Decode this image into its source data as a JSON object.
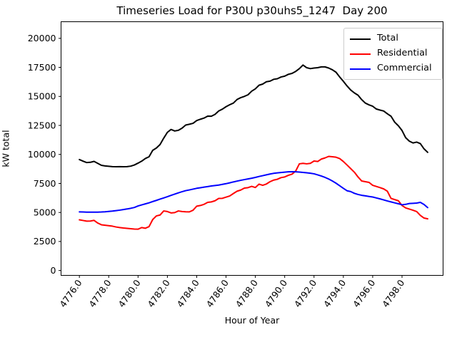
{
  "figure": {
    "title": "Timeseries Load for P30U p30uhs5_1247  Day 200",
    "xlabel": "Hour of Year",
    "ylabel": "kW total"
  },
  "legend": {
    "items": [
      {
        "label": "Total",
        "color": "#000000"
      },
      {
        "label": "Residential",
        "color": "#ff0000"
      },
      {
        "label": "Commercial",
        "color": "#0000ff"
      }
    ]
  },
  "chart_data": {
    "type": "line",
    "title": "Timeseries Load for P30U p30uhs5_1247  Day 200",
    "xlabel": "Hour of Year",
    "ylabel": "kW total",
    "grid": false,
    "legend_position": "upper right",
    "xlim": [
      4774.75,
      4800.8
    ],
    "ylim": [
      -420,
      21430
    ],
    "xticks": [
      4776,
      4778,
      4780,
      4782,
      4784,
      4786,
      4788,
      4790,
      4792,
      4794,
      4796,
      4798
    ],
    "xtick_labels": [
      "4776.0",
      "4778.0",
      "4780.0",
      "4782.0",
      "4784.0",
      "4786.0",
      "4788.0",
      "4790.0",
      "4792.0",
      "4794.0",
      "4796.0",
      "4798.0"
    ],
    "yticks": [
      0,
      2500,
      5000,
      7500,
      10000,
      12500,
      15000,
      17500,
      20000
    ],
    "ytick_labels": [
      "0",
      "2500",
      "5000",
      "7500",
      "10000",
      "12500",
      "15000",
      "17500",
      "20000"
    ],
    "x": [
      4776.0,
      4776.25,
      4776.5,
      4776.75,
      4777.0,
      4777.25,
      4777.5,
      4777.75,
      4778.0,
      4778.25,
      4778.5,
      4778.75,
      4779.0,
      4779.25,
      4779.5,
      4779.75,
      4780.0,
      4780.25,
      4780.5,
      4780.75,
      4781.0,
      4781.25,
      4781.5,
      4781.75,
      4782.0,
      4782.25,
      4782.5,
      4782.75,
      4783.0,
      4783.25,
      4783.5,
      4783.75,
      4784.0,
      4784.25,
      4784.5,
      4784.75,
      4785.0,
      4785.25,
      4785.5,
      4785.75,
      4786.0,
      4786.25,
      4786.5,
      4786.75,
      4787.0,
      4787.25,
      4787.5,
      4787.75,
      4788.0,
      4788.25,
      4788.5,
      4788.75,
      4789.0,
      4789.25,
      4789.5,
      4789.75,
      4790.0,
      4790.25,
      4790.5,
      4790.75,
      4791.0,
      4791.25,
      4791.5,
      4791.75,
      4792.0,
      4792.25,
      4792.5,
      4792.75,
      4793.0,
      4793.25,
      4793.5,
      4793.75,
      4794.0,
      4794.25,
      4794.5,
      4794.75,
      4795.0,
      4795.25,
      4795.5,
      4795.75,
      4796.0,
      4796.25,
      4796.5,
      4796.75,
      4797.0,
      4797.25,
      4797.5,
      4797.75,
      4798.0,
      4798.25,
      4798.5,
      4798.75,
      4799.0,
      4799.25,
      4799.5,
      4799.75
    ],
    "series": [
      {
        "name": "Total",
        "color": "#000000",
        "values": [
          9560,
          9420,
          9300,
          9320,
          9400,
          9230,
          9060,
          9010,
          8980,
          8950,
          8940,
          8950,
          8940,
          8950,
          8990,
          9090,
          9250,
          9420,
          9650,
          9800,
          10350,
          10550,
          10850,
          11400,
          11900,
          12150,
          12020,
          12080,
          12260,
          12530,
          12600,
          12680,
          12920,
          13030,
          13130,
          13300,
          13290,
          13450,
          13740,
          13900,
          14110,
          14280,
          14420,
          14730,
          14890,
          15000,
          15140,
          15450,
          15650,
          15960,
          16060,
          16260,
          16310,
          16470,
          16520,
          16670,
          16740,
          16900,
          16980,
          17150,
          17390,
          17700,
          17470,
          17390,
          17440,
          17470,
          17540,
          17540,
          17440,
          17290,
          17080,
          16670,
          16300,
          15900,
          15550,
          15300,
          15100,
          14720,
          14420,
          14270,
          14150,
          13910,
          13820,
          13740,
          13500,
          13290,
          12780,
          12470,
          12060,
          11440,
          11140,
          10990,
          11060,
          10930,
          10480,
          10180
        ]
      },
      {
        "name": "Residential",
        "color": "#ff0000",
        "values": [
          4370,
          4310,
          4250,
          4260,
          4320,
          4090,
          3940,
          3900,
          3860,
          3820,
          3750,
          3700,
          3660,
          3630,
          3600,
          3570,
          3560,
          3700,
          3640,
          3780,
          4390,
          4700,
          4780,
          5130,
          5080,
          4960,
          4990,
          5130,
          5080,
          5060,
          5050,
          5190,
          5540,
          5600,
          5700,
          5870,
          5910,
          6010,
          6210,
          6220,
          6320,
          6420,
          6630,
          6830,
          6930,
          7100,
          7140,
          7250,
          7150,
          7440,
          7340,
          7450,
          7650,
          7790,
          7860,
          8000,
          8060,
          8200,
          8300,
          8570,
          9190,
          9230,
          9190,
          9230,
          9430,
          9390,
          9600,
          9700,
          9830,
          9800,
          9760,
          9640,
          9390,
          9090,
          8780,
          8470,
          8060,
          7710,
          7650,
          7590,
          7340,
          7240,
          7140,
          7030,
          6830,
          6210,
          6110,
          6010,
          5600,
          5390,
          5290,
          5190,
          5080,
          4750,
          4520,
          4450
        ]
      },
      {
        "name": "Commercial",
        "color": "#0000ff",
        "values": [
          5050,
          5040,
          5030,
          5030,
          5030,
          5030,
          5040,
          5060,
          5090,
          5120,
          5160,
          5200,
          5250,
          5300,
          5360,
          5430,
          5560,
          5650,
          5740,
          5830,
          5940,
          6040,
          6150,
          6250,
          6360,
          6470,
          6580,
          6690,
          6790,
          6880,
          6940,
          7010,
          7080,
          7130,
          7180,
          7230,
          7280,
          7320,
          7360,
          7420,
          7480,
          7550,
          7630,
          7700,
          7770,
          7830,
          7890,
          7950,
          8020,
          8100,
          8170,
          8240,
          8310,
          8370,
          8410,
          8440,
          8470,
          8500,
          8510,
          8500,
          8480,
          8450,
          8420,
          8380,
          8330,
          8240,
          8140,
          8020,
          7880,
          7710,
          7520,
          7300,
          7080,
          6870,
          6800,
          6650,
          6550,
          6480,
          6430,
          6380,
          6330,
          6250,
          6170,
          6080,
          5990,
          5910,
          5830,
          5750,
          5660,
          5700,
          5770,
          5790,
          5810,
          5870,
          5690,
          5420
        ]
      }
    ]
  }
}
